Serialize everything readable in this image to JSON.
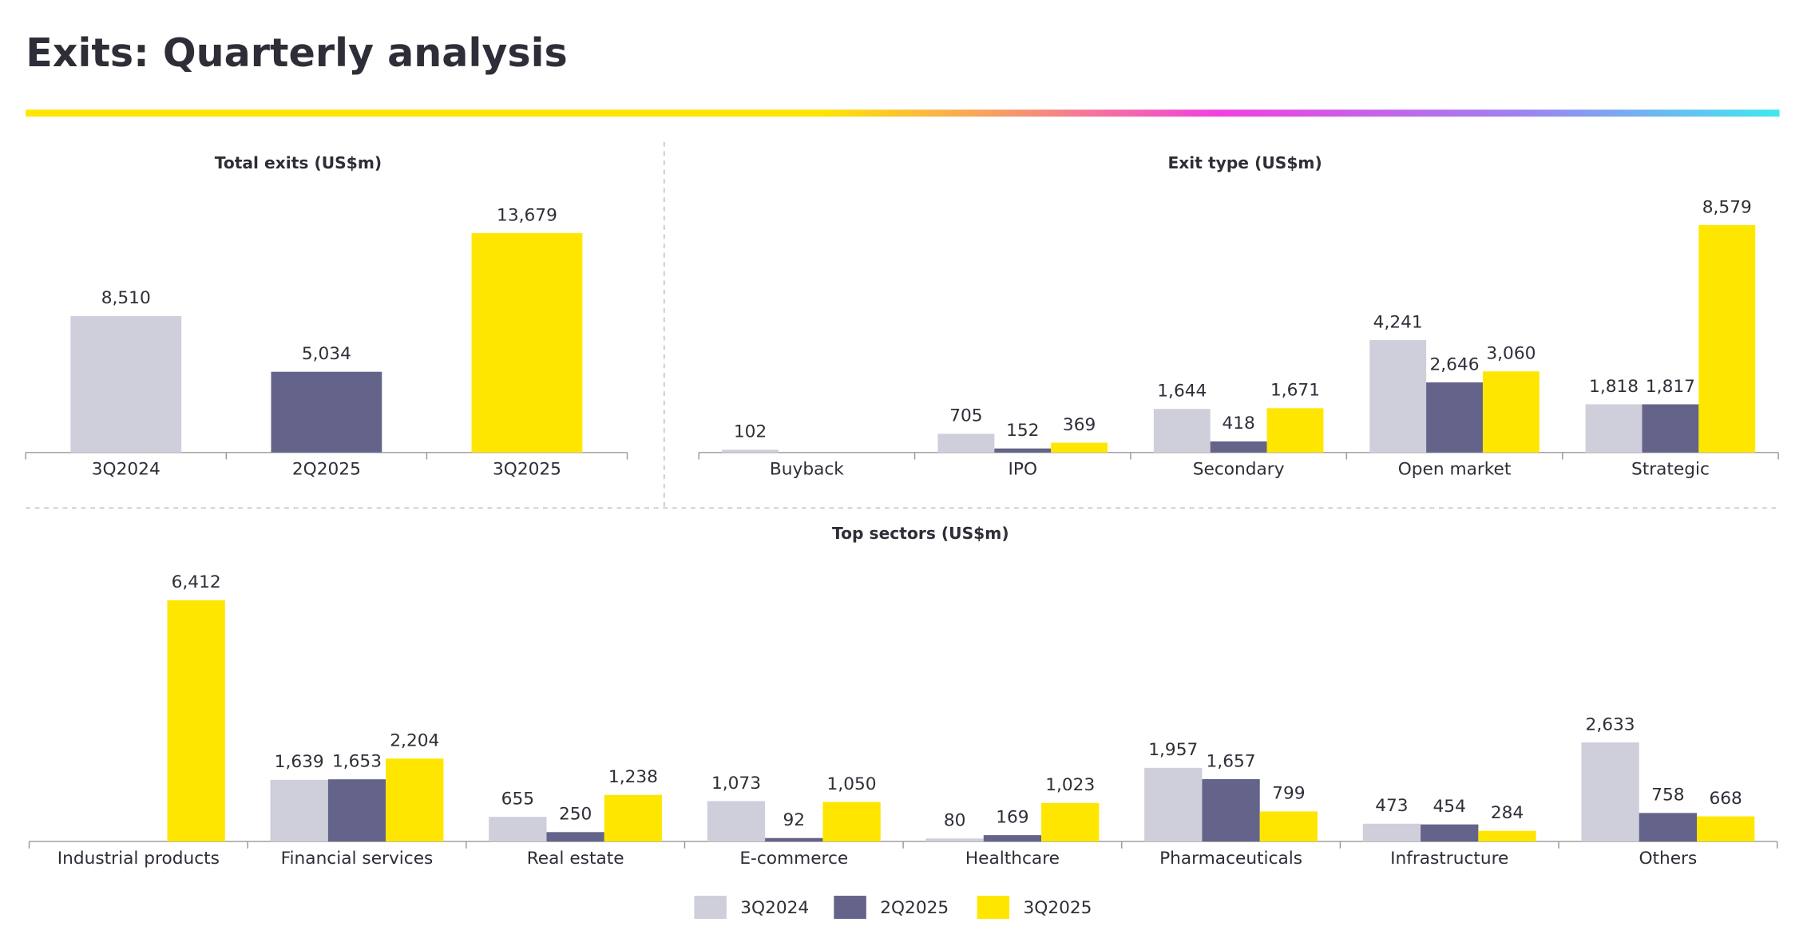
{
  "title": "Exits: Quarterly analysis",
  "chart_data": [
    {
      "type": "bar",
      "title": "Total exits (US$m)",
      "categories": [
        "3Q2024",
        "2Q2025",
        "3Q2025"
      ],
      "values": [
        8510,
        5034,
        13679
      ],
      "value_labels": [
        "8,510",
        "5,034",
        "13,679"
      ],
      "colors": [
        "#cfcedb",
        "#646389",
        "#ffe600"
      ]
    },
    {
      "type": "grouped-bar",
      "title": "Exit type (US$m)",
      "categories": [
        "Buyback",
        "IPO",
        "Secondary",
        "Open market",
        "Strategic"
      ],
      "series": [
        {
          "name": "3Q2024",
          "color": "#cfcedb",
          "values": [
            102,
            705,
            1644,
            4241,
            1818
          ],
          "value_labels": [
            "102",
            "705",
            "1,644",
            "4,241",
            "1,818"
          ]
        },
        {
          "name": "2Q2025",
          "color": "#646389",
          "values": [
            null,
            152,
            418,
            2646,
            1817
          ],
          "value_labels": [
            null,
            "152",
            "418",
            "2,646",
            "1,817"
          ]
        },
        {
          "name": "3Q2025",
          "color": "#ffe600",
          "values": [
            null,
            369,
            1671,
            3060,
            8579
          ],
          "value_labels": [
            null,
            "369",
            "1,671",
            "3,060",
            "8,579"
          ]
        }
      ]
    },
    {
      "type": "grouped-bar",
      "title": "Top sectors (US$m)",
      "legend": "bottom",
      "categories": [
        "Industrial products",
        "Financial services",
        "Real estate",
        "E-commerce",
        "Healthcare",
        "Pharmaceuticals",
        "Infrastructure",
        "Others"
      ],
      "series": [
        {
          "name": "3Q2024",
          "color": "#cfcedb",
          "values": [
            null,
            1639,
            655,
            1073,
            80,
            1957,
            473,
            2633
          ],
          "value_labels": [
            null,
            "1,639",
            "655",
            "1,073",
            "80",
            "1,957",
            "473",
            "2,633"
          ]
        },
        {
          "name": "2Q2025",
          "color": "#646389",
          "values": [
            null,
            1653,
            250,
            92,
            169,
            1657,
            454,
            758
          ],
          "value_labels": [
            null,
            "1,653",
            "250",
            "92",
            "169",
            "1,657",
            "454",
            "758"
          ]
        },
        {
          "name": "3Q2025",
          "color": "#ffe600",
          "values": [
            6412,
            2204,
            1238,
            1050,
            1023,
            799,
            284,
            668
          ],
          "value_labels": [
            "6,412",
            "2,204",
            "1,238",
            "1,050",
            "1,023",
            "799",
            "284",
            "668"
          ]
        }
      ]
    }
  ]
}
